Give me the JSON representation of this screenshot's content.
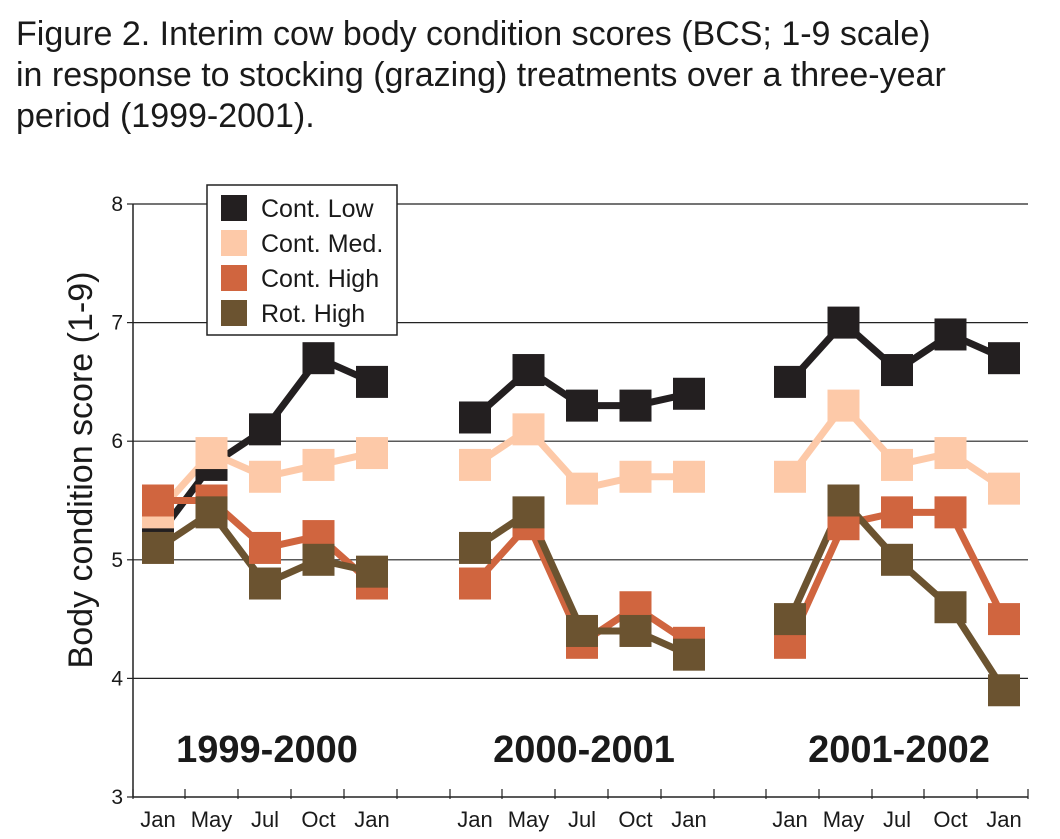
{
  "chart_data": {
    "type": "line",
    "title": "Figure 2. Interim cow body condition scores (BCS; 1-9 scale)\nin response to stocking (grazing) treatments over a three-year\nperiod (1999-2001).",
    "ylabel": "Body condition score (1-9)",
    "xlabel": "",
    "ylim": [
      3,
      8
    ],
    "yticks": [
      3,
      4,
      5,
      6,
      7,
      8
    ],
    "grid": "horizontal",
    "legend_position": "top-left",
    "groups": [
      "1999-2000",
      "2000-2001",
      "2001-2002"
    ],
    "categories": [
      "Jan",
      "May",
      "Jul",
      "Oct",
      "Jan"
    ],
    "series": [
      {
        "name": "Cont. Low",
        "color": "#231f20",
        "values": [
          [
            5.2,
            5.8,
            6.1,
            6.7,
            6.5
          ],
          [
            6.2,
            6.6,
            6.3,
            6.3,
            6.4
          ],
          [
            6.5,
            7.0,
            6.6,
            6.9,
            6.7
          ]
        ]
      },
      {
        "name": "Cont. Med.",
        "color": "#fdc9a8",
        "values": [
          [
            5.4,
            5.9,
            5.7,
            5.8,
            5.9
          ],
          [
            5.8,
            6.1,
            5.6,
            5.7,
            5.7
          ],
          [
            5.7,
            6.3,
            5.8,
            5.9,
            5.6
          ]
        ]
      },
      {
        "name": "Cont. High",
        "color": "#d0653f",
        "values": [
          [
            5.5,
            5.5,
            5.1,
            5.2,
            4.8
          ],
          [
            4.8,
            5.3,
            4.3,
            4.6,
            4.3
          ],
          [
            4.3,
            5.3,
            5.4,
            5.4,
            4.5
          ]
        ]
      },
      {
        "name": "Rot. High",
        "color": "#6b5330",
        "values": [
          [
            5.1,
            5.4,
            4.8,
            5.0,
            4.9
          ],
          [
            5.1,
            5.4,
            4.4,
            4.4,
            4.2
          ],
          [
            4.5,
            5.5,
            5.0,
            4.6,
            3.9
          ]
        ]
      }
    ]
  }
}
